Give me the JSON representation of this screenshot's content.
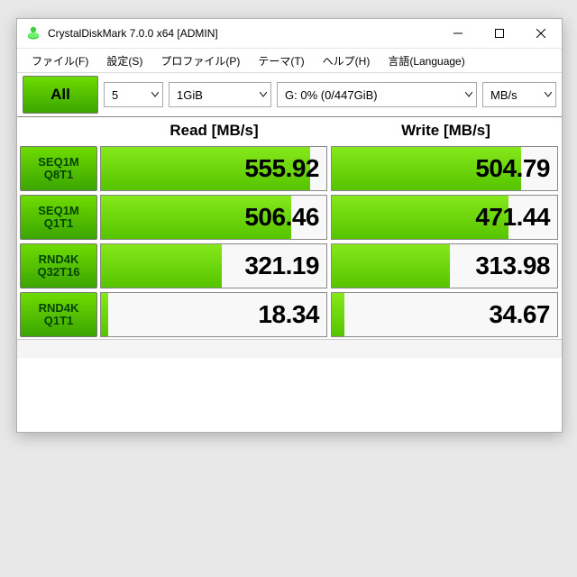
{
  "window": {
    "title": "CrystalDiskMark 7.0.0 x64 [ADMIN]"
  },
  "menu": {
    "file": "ファイル(F)",
    "settings": "設定(S)",
    "profile": "プロファイル(P)",
    "theme": "テーマ(T)",
    "help": "ヘルプ(H)",
    "language": "言語(Language)"
  },
  "toolbar": {
    "all": "All",
    "runs": "5",
    "size": "1GiB",
    "drive": "G: 0% (0/447GiB)",
    "unit": "MB/s"
  },
  "headers": {
    "read": "Read [MB/s]",
    "write": "Write [MB/s]"
  },
  "bar_max": 600,
  "tests": [
    {
      "label1": "SEQ1M",
      "label2": "Q8T1",
      "read": 555.92,
      "write": 504.79
    },
    {
      "label1": "SEQ1M",
      "label2": "Q1T1",
      "read": 506.46,
      "write": 471.44
    },
    {
      "label1": "RND4K",
      "label2": "Q32T16",
      "read": 321.19,
      "write": 313.98
    },
    {
      "label1": "RND4K",
      "label2": "Q1T1",
      "read": 18.34,
      "write": 34.67
    }
  ],
  "colors": {
    "bar_top": "#85e81a",
    "bar_bot": "#56c400",
    "btn_top": "#6edc00",
    "btn_bot": "#3ba500",
    "cell_border": "#888",
    "cell_bg": "#f8f8f8"
  }
}
